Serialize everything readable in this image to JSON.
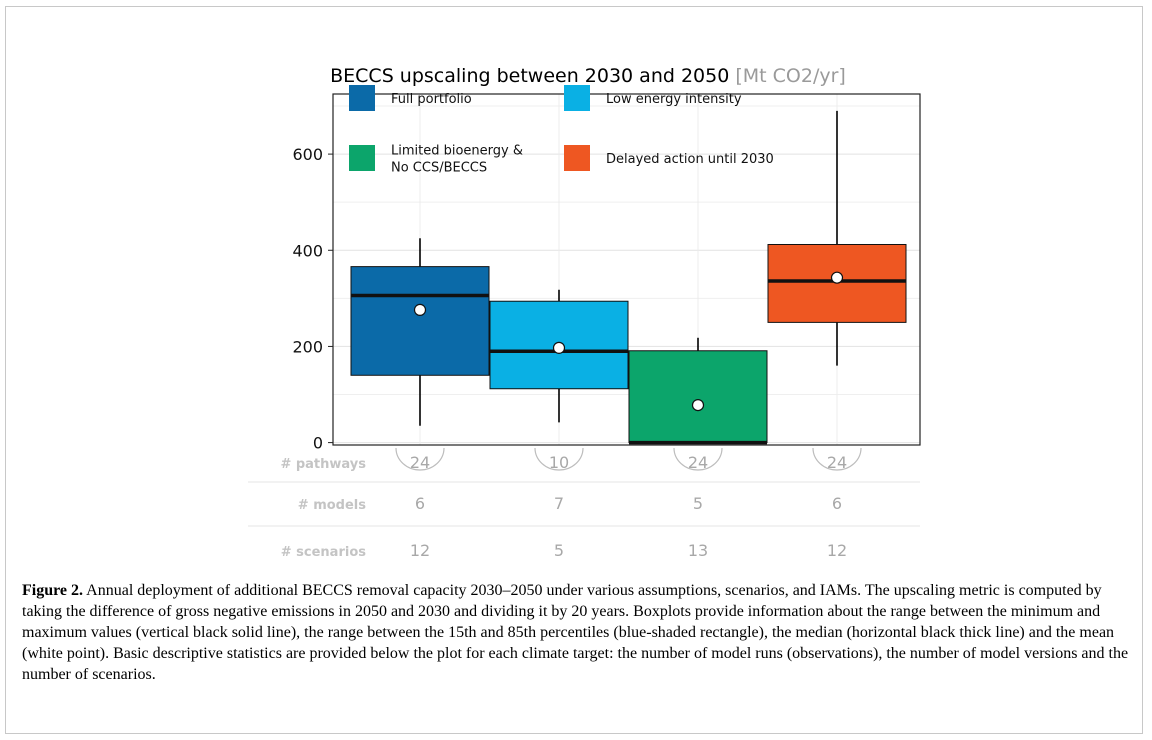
{
  "chart_data": {
    "type": "box",
    "title": "BECCS upscaling between 2030 and 2050",
    "title_units": "[Mt CO2/yr]",
    "xlabel": "",
    "ylabel": "",
    "ylim": [
      -5,
      725
    ],
    "y_ticks": [
      0,
      200,
      400,
      600
    ],
    "grid": true,
    "legend_position": "top-inside",
    "series": [
      {
        "name": "Full portfolio",
        "color": "#0b6aa8",
        "min": 35,
        "p15": 140,
        "median": 306,
        "mean": 276,
        "p85": 366,
        "max": 425
      },
      {
        "name": "Low energy intensity",
        "color": "#0ab0e4",
        "min": 42,
        "p15": 112,
        "median": 190,
        "mean": 197,
        "p85": 294,
        "max": 318
      },
      {
        "name": "Limited bioenergy &\nNo CCS/BECCS",
        "color": "#0ca56b",
        "min": 0,
        "p15": 0,
        "median": 0,
        "mean": 78,
        "p85": 191,
        "max": 218
      },
      {
        "name": "Delayed action until 2030",
        "color": "#ee5722",
        "min": 160,
        "p15": 250,
        "median": 336,
        "mean": 343,
        "p85": 412,
        "max": 690
      }
    ],
    "stats": {
      "rows": [
        "# pathways",
        "# models",
        "# scenarios"
      ],
      "pathways": [
        24,
        10,
        24,
        24
      ],
      "models": [
        6,
        7,
        5,
        6
      ],
      "scenarios": [
        12,
        5,
        13,
        12
      ]
    }
  },
  "caption": {
    "label": "Figure 2.",
    "text": "Annual deployment of additional BECCS removal capacity 2030–2050 under various assumptions, scenarios, and IAMs. The upscaling metric is computed by taking the difference of gross negative emissions in 2050 and 2030 and dividing it by 20 years. Boxplots provide information about the range between the minimum and maximum values (vertical black solid line), the range between the 15th and 85th percentiles (blue-shaded rectangle), the median (horizontal black thick line) and the mean (white point). Basic descriptive statistics are provided below the plot for each climate target: the number of model runs (observations), the number of model versions and the number of scenarios."
  }
}
